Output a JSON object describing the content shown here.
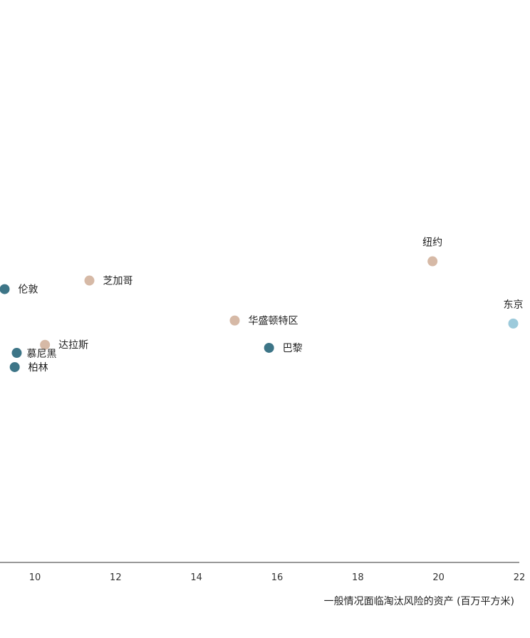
{
  "chart_data": {
    "type": "scatter",
    "title": "",
    "xlabel": "一般情况面临淘汰风险的资产 (百万平方米)",
    "ylabel": "",
    "xlim": [
      9,
      22
    ],
    "x_ticks": [
      "10",
      "12",
      "14",
      "16",
      "18",
      "20",
      "22"
    ],
    "grid": false,
    "legend": "none",
    "colors": {
      "teal": "#3d7587",
      "beige": "#d6b9a6",
      "light_blue": "#9ccadb",
      "axis": "#333333"
    },
    "points": [
      {
        "label": "纽约",
        "x": 19.85,
        "y": 0.595,
        "color": "beige"
      },
      {
        "label": "芝加哥",
        "x": 11.35,
        "y": 0.557,
        "color": "beige"
      },
      {
        "label": "伦敦",
        "x": 9.25,
        "y": 0.54,
        "color": "teal"
      },
      {
        "label": "东京",
        "x": 21.85,
        "y": 0.472,
        "color": "light_blue"
      },
      {
        "label": "华盛顿特区",
        "x": 14.95,
        "y": 0.478,
        "color": "beige"
      },
      {
        "label": "达拉斯",
        "x": 10.25,
        "y": 0.43,
        "color": "beige"
      },
      {
        "label": "巴黎",
        "x": 15.8,
        "y": 0.424,
        "color": "teal"
      },
      {
        "label": "慕尼黑",
        "x": 9.55,
        "y": 0.414,
        "color": "teal"
      },
      {
        "label": "柏林",
        "x": 9.5,
        "y": 0.386,
        "color": "teal"
      }
    ]
  }
}
